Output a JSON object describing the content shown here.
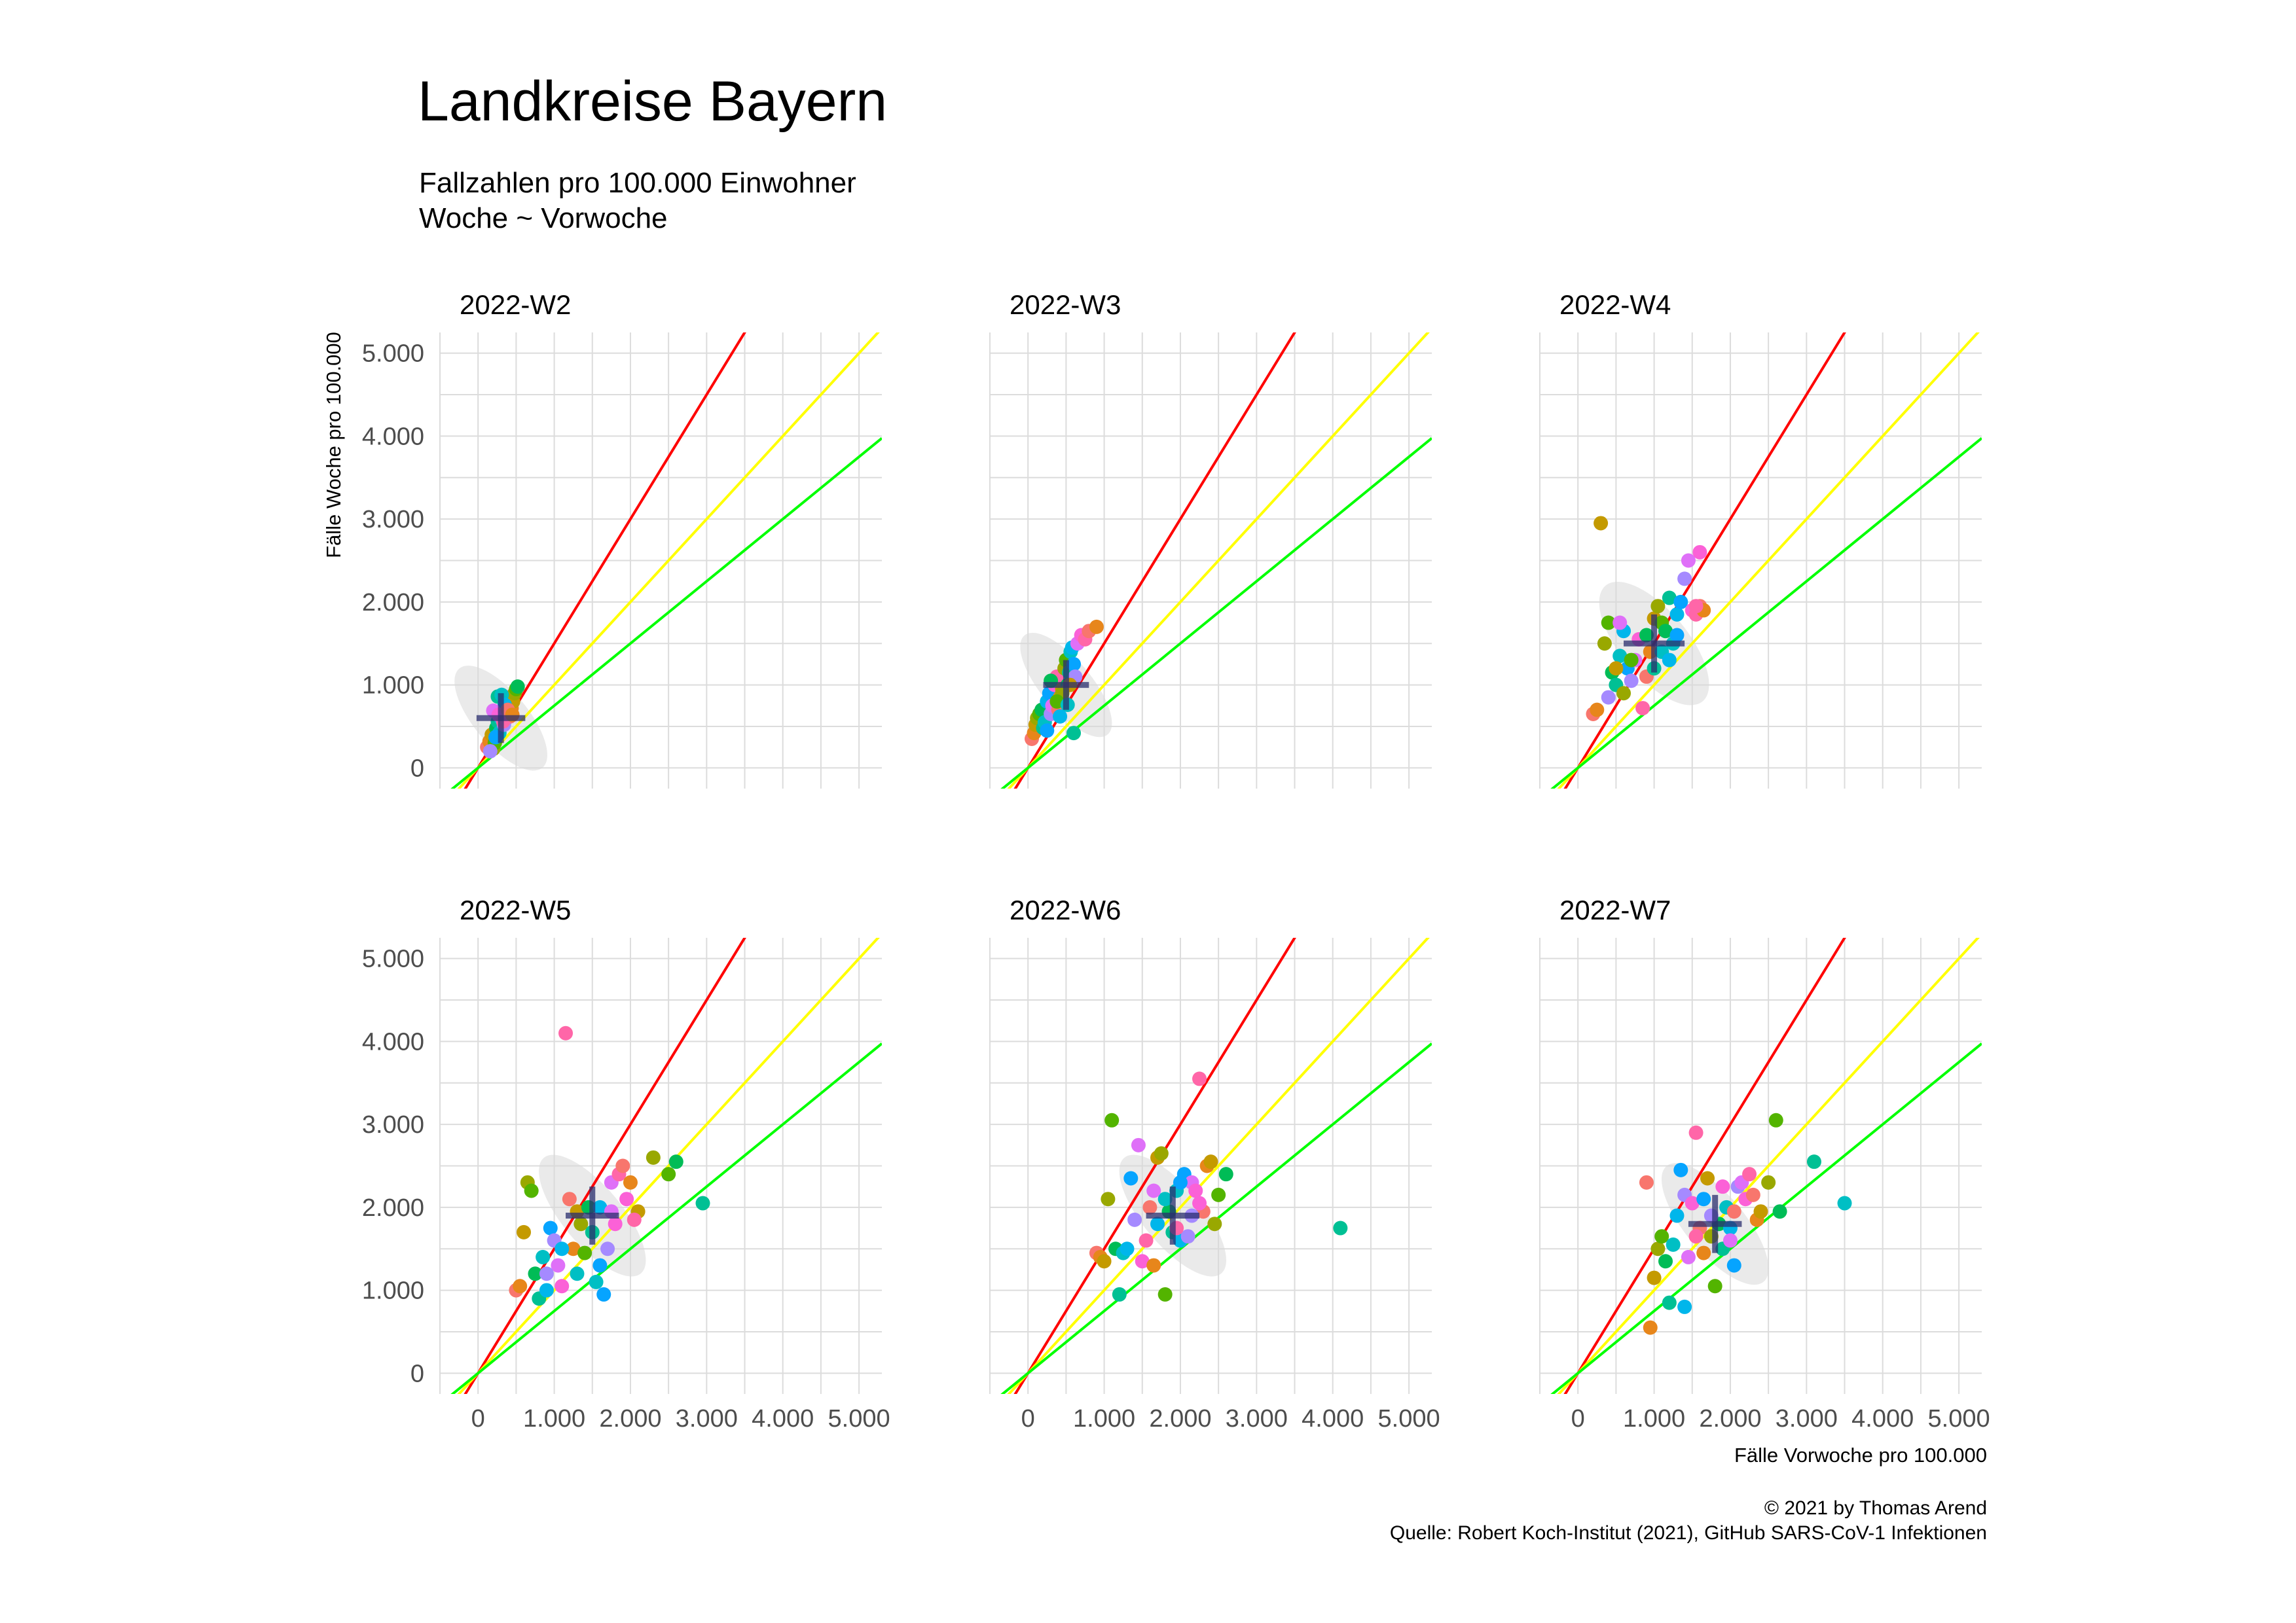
{
  "title": "Landkreise Bayern",
  "subtitle_lines": [
    "Fallzahlen pro 100.000 Einwohner",
    "Woche ~ Vorwoche"
  ],
  "caption_lines": [
    "© 2021 by Thomas Arend",
    "Quelle: Robert Koch-Institut (2021), GitHub SARS-CoV-1 Infektionen"
  ],
  "colors": {
    "red_line": "#ff0000",
    "yellow_line": "#ffff00",
    "green_line": "#00ff00",
    "grid": "#dcdcdc",
    "crosshair": "#2b2f6e",
    "palette": [
      "#f8766d",
      "#e7861b",
      "#c49a00",
      "#99a800",
      "#53b400",
      "#00bc56",
      "#00c094",
      "#00bfc4",
      "#00b6eb",
      "#06a4ff",
      "#a58aff",
      "#df70f8",
      "#fb61d7",
      "#ff66a8"
    ]
  },
  "chart_data": {
    "type": "scatter",
    "title": "Landkreise Bayern",
    "xlabel": "Fälle Vorwoche pro 100.000",
    "ylabel": "Fälle Woche pro 100.000",
    "xlim": [
      -500,
      5300
    ],
    "ylim": [
      -250,
      5250
    ],
    "ticks": [
      0,
      1000,
      2000,
      3000,
      4000,
      5000
    ],
    "tick_labels": [
      "0",
      "1.000",
      "2.000",
      "3.000",
      "4.000",
      "5.000"
    ],
    "grid": true,
    "reference_lines": [
      {
        "color": "red",
        "slope": 1.5
      },
      {
        "color": "yellow",
        "slope": 1.0
      },
      {
        "color": "green",
        "slope": 0.75
      }
    ],
    "panels": [
      {
        "label": "2022-W2",
        "cross": {
          "x": 300,
          "y": 600,
          "sx": 320,
          "sy": 300
        },
        "points": [
          [
            120,
            250
          ],
          [
            150,
            320
          ],
          [
            180,
            400
          ],
          [
            200,
            230
          ],
          [
            220,
            300
          ],
          [
            240,
            480
          ],
          [
            260,
            560
          ],
          [
            280,
            420
          ],
          [
            300,
            600
          ],
          [
            320,
            700
          ],
          [
            340,
            520
          ],
          [
            360,
            650
          ],
          [
            380,
            780
          ],
          [
            400,
            850
          ],
          [
            420,
            620
          ],
          [
            440,
            720
          ],
          [
            460,
            800
          ],
          [
            480,
            900
          ],
          [
            500,
            950
          ],
          [
            520,
            980
          ],
          [
            260,
            860
          ],
          [
            310,
            880
          ],
          [
            350,
            760
          ],
          [
            230,
            370
          ],
          [
            160,
            200
          ],
          [
            200,
            690
          ],
          [
            270,
            640
          ],
          [
            330,
            560
          ],
          [
            390,
            700
          ],
          [
            450,
            640
          ]
        ]
      },
      {
        "label": "2022-W3",
        "cross": {
          "x": 500,
          "y": 1000,
          "sx": 300,
          "sy": 300
        },
        "points": [
          [
            50,
            350
          ],
          [
            80,
            420
          ],
          [
            100,
            520
          ],
          [
            120,
            600
          ],
          [
            150,
            650
          ],
          [
            180,
            700
          ],
          [
            200,
            480
          ],
          [
            220,
            550
          ],
          [
            250,
            800
          ],
          [
            280,
            900
          ],
          [
            300,
            650
          ],
          [
            320,
            750
          ],
          [
            350,
            1000
          ],
          [
            380,
            1100
          ],
          [
            400,
            700
          ],
          [
            420,
            850
          ],
          [
            450,
            950
          ],
          [
            480,
            1200
          ],
          [
            500,
            1300
          ],
          [
            520,
            1000
          ],
          [
            540,
            1150
          ],
          [
            560,
            1400
          ],
          [
            580,
            1450
          ],
          [
            600,
            1250
          ],
          [
            620,
            1100
          ],
          [
            650,
            1500
          ],
          [
            700,
            1600
          ],
          [
            750,
            1550
          ],
          [
            800,
            1650
          ],
          [
            900,
            1700
          ],
          [
            550,
            1000
          ],
          [
            450,
            900
          ],
          [
            380,
            800
          ],
          [
            300,
            1050
          ],
          [
            600,
            420
          ],
          [
            520,
            760
          ],
          [
            420,
            620
          ],
          [
            250,
            450
          ]
        ]
      },
      {
        "label": "2022-W4",
        "cross": {
          "x": 1000,
          "y": 1500,
          "sx": 400,
          "sy": 350
        },
        "points": [
          [
            200,
            650
          ],
          [
            250,
            700
          ],
          [
            300,
            2950
          ],
          [
            350,
            1500
          ],
          [
            400,
            1750
          ],
          [
            450,
            1150
          ],
          [
            500,
            1000
          ],
          [
            550,
            1350
          ],
          [
            600,
            1650
          ],
          [
            650,
            1200
          ],
          [
            700,
            1050
          ],
          [
            750,
            1300
          ],
          [
            800,
            1550
          ],
          [
            850,
            720
          ],
          [
            900,
            1100
          ],
          [
            950,
            1400
          ],
          [
            1000,
            1800
          ],
          [
            1050,
            1950
          ],
          [
            1100,
            1750
          ],
          [
            1150,
            1650
          ],
          [
            1200,
            2050
          ],
          [
            1250,
            1500
          ],
          [
            1300,
            1850
          ],
          [
            1350,
            2000
          ],
          [
            1400,
            2280
          ],
          [
            1450,
            2500
          ],
          [
            1500,
            1900
          ],
          [
            1550,
            1850
          ],
          [
            1600,
            1950
          ],
          [
            1650,
            1900
          ],
          [
            500,
            1200
          ],
          [
            600,
            900
          ],
          [
            700,
            1300
          ],
          [
            900,
            1600
          ],
          [
            1000,
            1200
          ],
          [
            1100,
            1400
          ],
          [
            1200,
            1300
          ],
          [
            1300,
            1600
          ],
          [
            400,
            850
          ],
          [
            550,
            1750
          ],
          [
            1600,
            2600
          ],
          [
            1550,
            1950
          ]
        ]
      },
      {
        "label": "2022-W5",
        "cross": {
          "x": 1500,
          "y": 1900,
          "sx": 350,
          "sy": 350
        },
        "points": [
          [
            500,
            1000
          ],
          [
            550,
            1050
          ],
          [
            600,
            1700
          ],
          [
            650,
            2300
          ],
          [
            700,
            2200
          ],
          [
            750,
            1200
          ],
          [
            800,
            900
          ],
          [
            850,
            1400
          ],
          [
            900,
            1000
          ],
          [
            950,
            1750
          ],
          [
            1000,
            1600
          ],
          [
            1050,
            1300
          ],
          [
            1100,
            1050
          ],
          [
            1150,
            4100
          ],
          [
            1200,
            2100
          ],
          [
            1250,
            1500
          ],
          [
            1300,
            1950
          ],
          [
            1350,
            1800
          ],
          [
            1400,
            1450
          ],
          [
            1450,
            2000
          ],
          [
            1500,
            1700
          ],
          [
            1550,
            1100
          ],
          [
            1600,
            2000
          ],
          [
            1650,
            950
          ],
          [
            1700,
            1500
          ],
          [
            1750,
            2300
          ],
          [
            1800,
            1800
          ],
          [
            1850,
            2400
          ],
          [
            1900,
            2500
          ],
          [
            2000,
            2300
          ],
          [
            2100,
            1950
          ],
          [
            2300,
            2600
          ],
          [
            2500,
            2400
          ],
          [
            2600,
            2550
          ],
          [
            2950,
            2050
          ],
          [
            1300,
            1200
          ],
          [
            1100,
            1500
          ],
          [
            1600,
            1300
          ],
          [
            900,
            1200
          ],
          [
            1750,
            1950
          ],
          [
            1950,
            2100
          ],
          [
            2050,
            1850
          ]
        ]
      },
      {
        "label": "2022-W6",
        "cross": {
          "x": 1900,
          "y": 1900,
          "sx": 350,
          "sy": 350
        },
        "points": [
          [
            900,
            1450
          ],
          [
            950,
            1400
          ],
          [
            1000,
            1350
          ],
          [
            1050,
            2100
          ],
          [
            1100,
            3050
          ],
          [
            1150,
            1500
          ],
          [
            1200,
            950
          ],
          [
            1250,
            1450
          ],
          [
            1300,
            1500
          ],
          [
            1350,
            2350
          ],
          [
            1400,
            1850
          ],
          [
            1450,
            2750
          ],
          [
            1500,
            1350
          ],
          [
            1550,
            1600
          ],
          [
            1600,
            2000
          ],
          [
            1650,
            1300
          ],
          [
            1700,
            2600
          ],
          [
            1750,
            2650
          ],
          [
            1800,
            950
          ],
          [
            1850,
            1950
          ],
          [
            1900,
            1700
          ],
          [
            1950,
            2200
          ],
          [
            2000,
            1600
          ],
          [
            2050,
            2400
          ],
          [
            2100,
            1650
          ],
          [
            2150,
            2300
          ],
          [
            2200,
            2200
          ],
          [
            2250,
            3550
          ],
          [
            2300,
            1950
          ],
          [
            2350,
            2500
          ],
          [
            2400,
            2550
          ],
          [
            2450,
            1800
          ],
          [
            2500,
            2150
          ],
          [
            2600,
            2400
          ],
          [
            4100,
            1750
          ],
          [
            1800,
            2100
          ],
          [
            1700,
            1800
          ],
          [
            2000,
            2300
          ],
          [
            2150,
            1900
          ],
          [
            1650,
            2200
          ],
          [
            2250,
            2050
          ],
          [
            1950,
            1750
          ]
        ]
      },
      {
        "label": "2022-W7",
        "cross": {
          "x": 1800,
          "y": 1800,
          "sx": 350,
          "sy": 350
        },
        "points": [
          [
            900,
            2300
          ],
          [
            950,
            550
          ],
          [
            1000,
            1150
          ],
          [
            1050,
            1500
          ],
          [
            1100,
            1650
          ],
          [
            1150,
            1350
          ],
          [
            1200,
            850
          ],
          [
            1250,
            1550
          ],
          [
            1300,
            1900
          ],
          [
            1350,
            2450
          ],
          [
            1400,
            2150
          ],
          [
            1450,
            1400
          ],
          [
            1500,
            2050
          ],
          [
            1550,
            2900
          ],
          [
            1600,
            1750
          ],
          [
            1650,
            1450
          ],
          [
            1700,
            2350
          ],
          [
            1750,
            1650
          ],
          [
            1800,
            1050
          ],
          [
            1850,
            1800
          ],
          [
            1900,
            1500
          ],
          [
            1950,
            2000
          ],
          [
            2000,
            1750
          ],
          [
            2050,
            1300
          ],
          [
            2100,
            2250
          ],
          [
            2150,
            2300
          ],
          [
            2200,
            2100
          ],
          [
            2250,
            2400
          ],
          [
            2300,
            2150
          ],
          [
            2350,
            1850
          ],
          [
            2400,
            1950
          ],
          [
            2500,
            2300
          ],
          [
            2600,
            3050
          ],
          [
            2650,
            1950
          ],
          [
            3100,
            2550
          ],
          [
            3500,
            2050
          ],
          [
            1400,
            800
          ],
          [
            1650,
            2100
          ],
          [
            1750,
            1900
          ],
          [
            2000,
            1600
          ],
          [
            1900,
            2250
          ],
          [
            1550,
            1650
          ],
          [
            2050,
            1950
          ]
        ]
      }
    ]
  }
}
